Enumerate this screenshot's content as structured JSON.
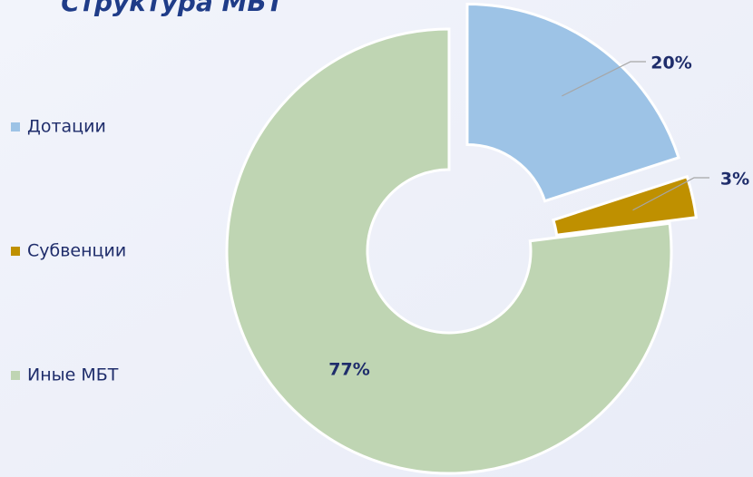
{
  "chart_data": {
    "type": "donut",
    "title": "Структура МБТ",
    "categories": [
      "Дотации",
      "Субвенции",
      "Иные МБТ"
    ],
    "values": [
      20,
      3,
      77
    ],
    "value_labels": [
      "20%",
      "3%",
      "77%"
    ],
    "colors": [
      "#9dc3e6",
      "#bf9000",
      "#bfd5b3"
    ],
    "legend": "left"
  }
}
